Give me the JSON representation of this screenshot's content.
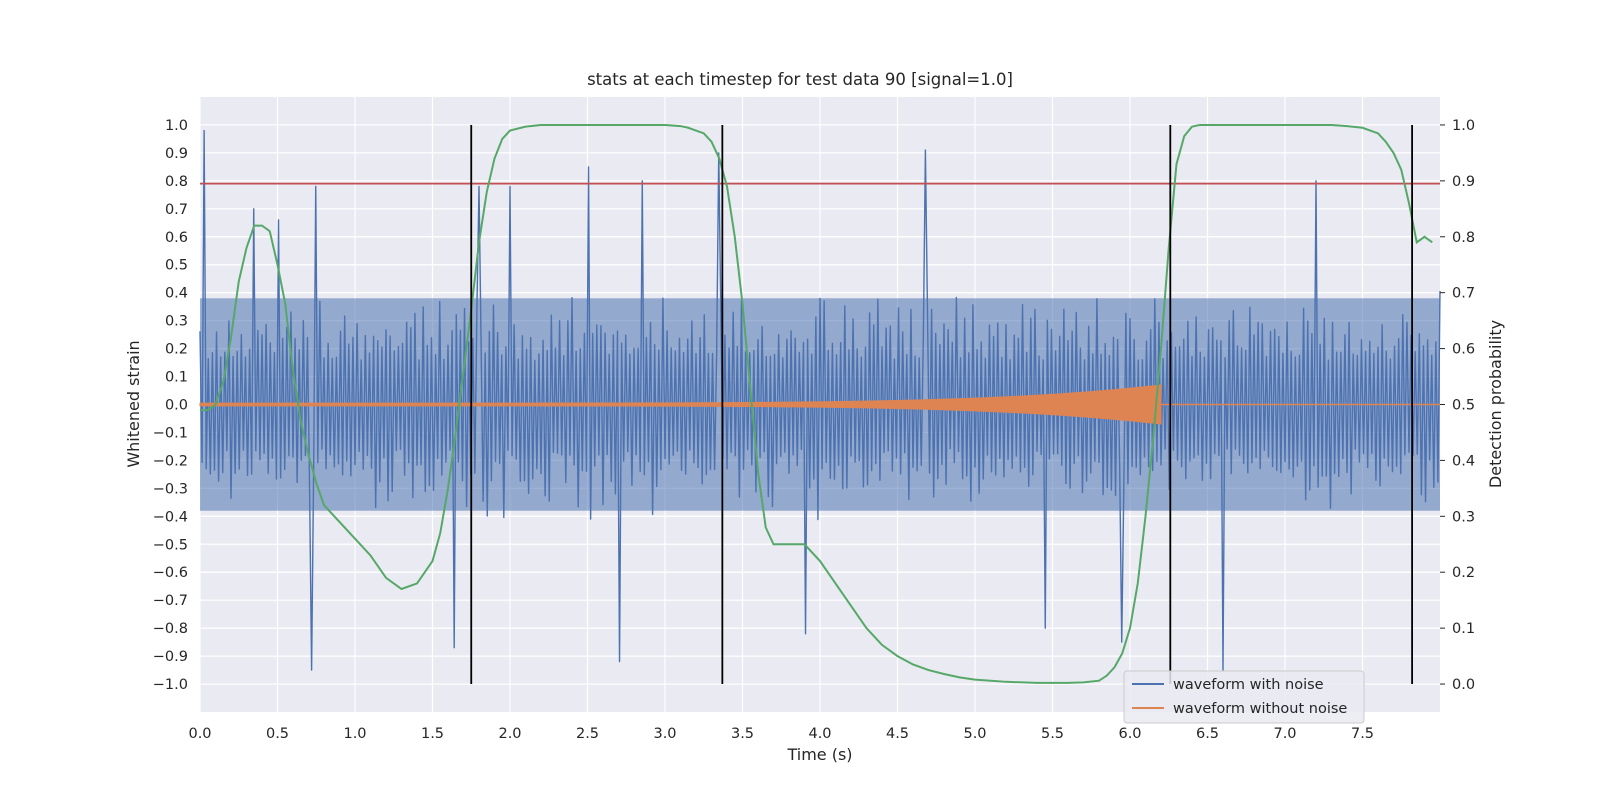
{
  "chart_data": {
    "type": "line",
    "title": "stats at each timestep for test data 90 [signal=1.0]",
    "xlabel": "Time (s)",
    "ylabel": "Whitened strain",
    "y2label": "Detection probability",
    "xlim": [
      0.0,
      8.0
    ],
    "ylim": [
      -1.1,
      1.1
    ],
    "y2lim": [
      -0.05,
      1.05
    ],
    "xticks": [
      "0.0",
      "0.5",
      "1.0",
      "1.5",
      "2.0",
      "2.5",
      "3.0",
      "3.5",
      "4.0",
      "4.5",
      "5.0",
      "5.5",
      "6.0",
      "6.5",
      "7.0",
      "7.5"
    ],
    "yticks": [
      "1.0",
      "0.9",
      "0.8",
      "0.7",
      "0.6",
      "0.5",
      "0.4",
      "0.3",
      "0.2",
      "0.1",
      "0.0",
      "−0.1",
      "−0.2",
      "−0.3",
      "−0.4",
      "−0.5",
      "−0.6",
      "−0.7",
      "−0.8",
      "−0.9",
      "−1.0"
    ],
    "y2ticks": [
      "1.0",
      "0.9",
      "0.8",
      "0.7",
      "0.6",
      "0.5",
      "0.4",
      "0.3",
      "0.2",
      "0.1",
      "0.0"
    ],
    "grid": true,
    "legend_position": "lower-right",
    "colors": {
      "noisy": "#4c72b0",
      "clean": "#dd8452",
      "probability": "#55a868",
      "threshold": "#c44e52",
      "boundary": "#000000",
      "axes_bg": "#eaeaf2"
    },
    "series": [
      {
        "name": "waveform with noise",
        "note_envelope": "noise roughly within ±0.5, spikes up to ~±0.95",
        "sample_count": 600,
        "amplitude_typical": 0.45,
        "spikes": [
          [
            0.03,
            0.98
          ],
          [
            0.35,
            0.7
          ],
          [
            0.5,
            0.66
          ],
          [
            0.72,
            -0.95
          ],
          [
            0.75,
            0.78
          ],
          [
            1.64,
            -0.87
          ],
          [
            1.8,
            0.78
          ],
          [
            2.0,
            0.78
          ],
          [
            2.5,
            0.85
          ],
          [
            2.7,
            -0.92
          ],
          [
            2.85,
            0.8
          ],
          [
            3.35,
            0.9
          ],
          [
            3.9,
            -0.82
          ],
          [
            4.68,
            0.91
          ],
          [
            5.45,
            -0.8
          ],
          [
            5.95,
            -0.85
          ],
          [
            6.6,
            -0.95
          ],
          [
            7.2,
            0.8
          ]
        ]
      },
      {
        "name": "waveform without noise",
        "x_start": 0.0,
        "x_merger": 6.2,
        "amplitude_start": 0.005,
        "amplitude_end": 0.07
      },
      {
        "name": "detection probability",
        "axis": "right",
        "x": [
          0.0,
          0.05,
          0.1,
          0.15,
          0.2,
          0.25,
          0.3,
          0.35,
          0.4,
          0.45,
          0.5,
          0.55,
          0.6,
          0.65,
          0.7,
          0.75,
          0.8,
          0.9,
          1.0,
          1.1,
          1.2,
          1.3,
          1.4,
          1.5,
          1.55,
          1.6,
          1.65,
          1.7,
          1.75,
          1.8,
          1.85,
          1.9,
          1.95,
          2.0,
          2.1,
          2.2,
          2.5,
          3.0,
          3.1,
          3.15,
          3.2,
          3.25,
          3.3,
          3.35,
          3.4,
          3.45,
          3.5,
          3.55,
          3.6,
          3.65,
          3.7,
          3.8,
          3.9,
          4.0,
          4.1,
          4.2,
          4.3,
          4.4,
          4.5,
          4.6,
          4.7,
          4.8,
          4.9,
          5.0,
          5.2,
          5.4,
          5.6,
          5.7,
          5.8,
          5.85,
          5.9,
          5.95,
          6.0,
          6.05,
          6.1,
          6.15,
          6.2,
          6.25,
          6.3,
          6.35,
          6.4,
          6.45,
          6.5,
          6.6,
          7.0,
          7.3,
          7.4,
          7.5,
          7.55,
          7.6,
          7.65,
          7.7,
          7.75,
          7.8,
          7.85,
          7.9,
          7.95
        ],
        "y": [
          0.49,
          0.49,
          0.5,
          0.54,
          0.62,
          0.72,
          0.78,
          0.82,
          0.82,
          0.81,
          0.75,
          0.68,
          0.56,
          0.47,
          0.41,
          0.36,
          0.32,
          0.29,
          0.26,
          0.23,
          0.19,
          0.17,
          0.18,
          0.22,
          0.27,
          0.35,
          0.45,
          0.56,
          0.67,
          0.79,
          0.88,
          0.94,
          0.975,
          0.99,
          0.997,
          1.0,
          1.0,
          1.0,
          0.998,
          0.995,
          0.99,
          0.985,
          0.97,
          0.94,
          0.89,
          0.8,
          0.68,
          0.53,
          0.38,
          0.28,
          0.25,
          0.25,
          0.25,
          0.22,
          0.18,
          0.14,
          0.1,
          0.07,
          0.05,
          0.035,
          0.025,
          0.018,
          0.012,
          0.008,
          0.004,
          0.002,
          0.002,
          0.003,
          0.006,
          0.015,
          0.03,
          0.055,
          0.1,
          0.18,
          0.3,
          0.44,
          0.6,
          0.78,
          0.93,
          0.98,
          0.997,
          1.0,
          1.0,
          1.0,
          1.0,
          1.0,
          0.998,
          0.995,
          0.99,
          0.985,
          0.97,
          0.95,
          0.92,
          0.86,
          0.79,
          0.8,
          0.79
        ]
      }
    ],
    "hlines": [
      {
        "y": 0.79,
        "axis": "left",
        "role": "threshold"
      }
    ],
    "vlines": [
      1.75,
      3.37,
      6.26,
      7.82
    ]
  },
  "legend": {
    "items": [
      {
        "label": "waveform with noise"
      },
      {
        "label": "waveform without noise"
      }
    ]
  }
}
